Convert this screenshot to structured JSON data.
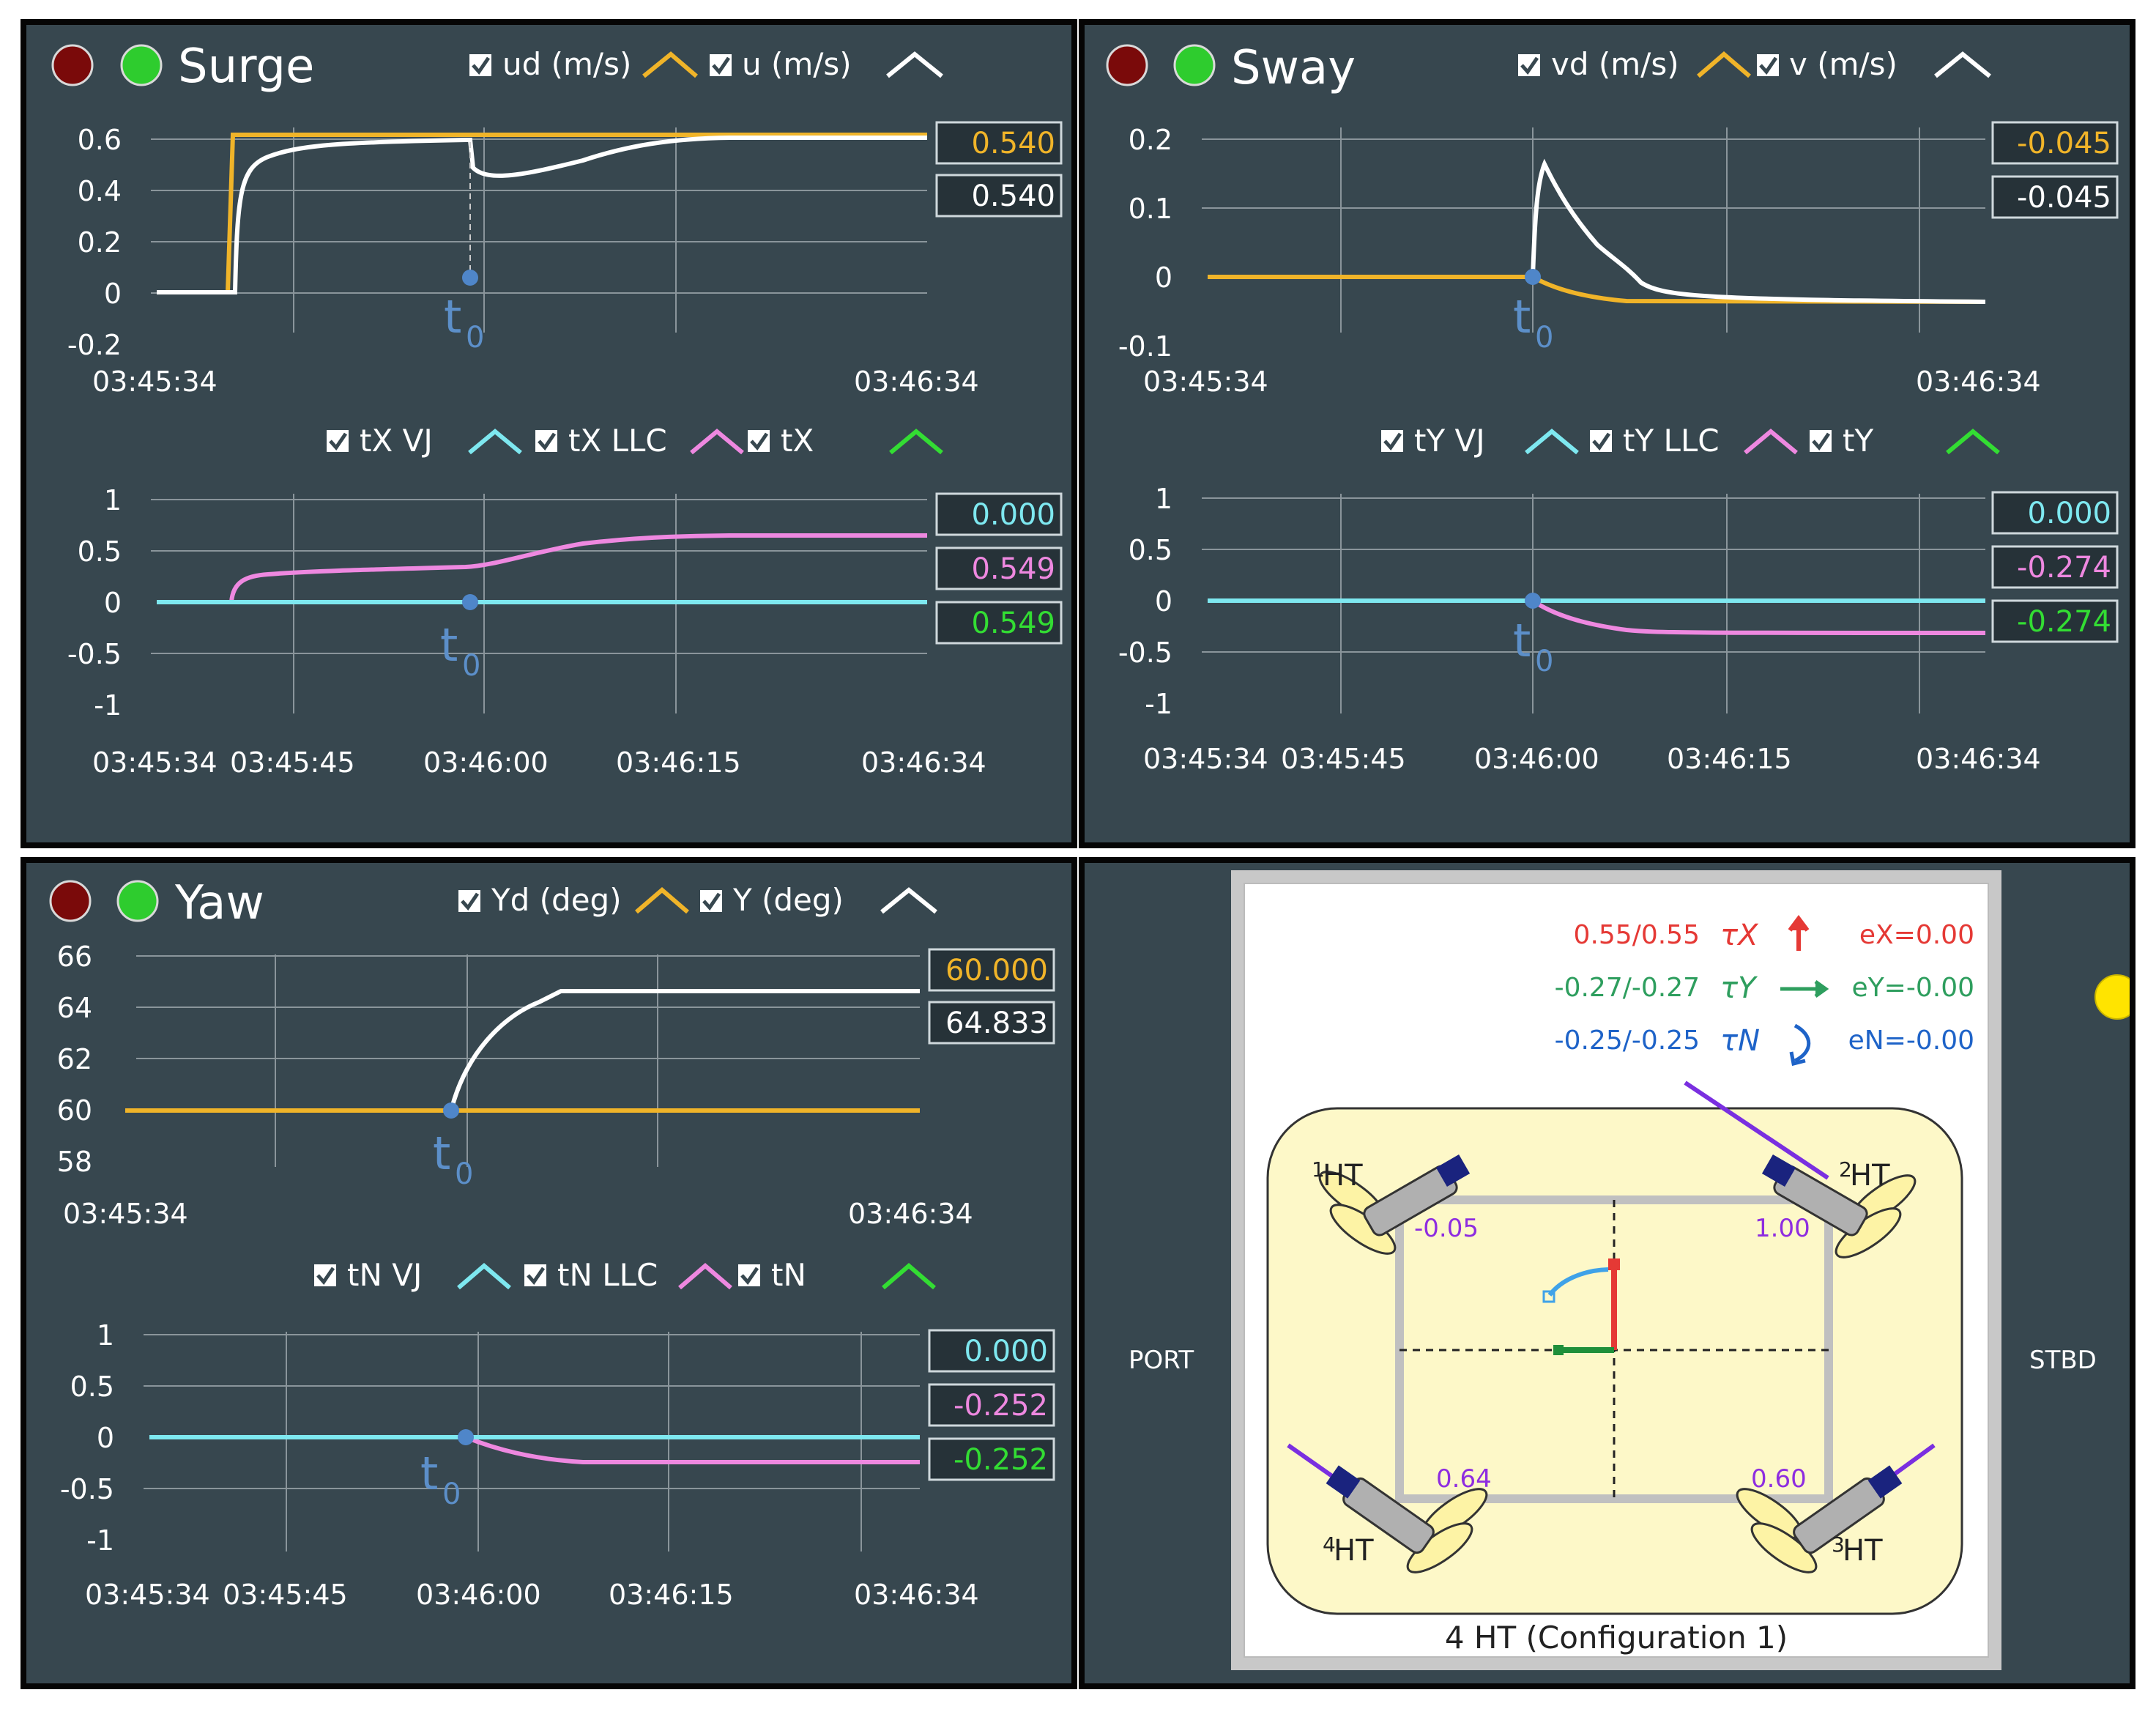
{
  "surge": {
    "title": "Surge",
    "legend_top": [
      {
        "label": "ud (m/s)",
        "color": "#f0b429"
      },
      {
        "label": "u (m/s)",
        "color": "#ffffff"
      }
    ],
    "top": {
      "yticks": [
        "0.6",
        "0.4",
        "0.2",
        "0",
        "-0.2"
      ],
      "xlabels": [
        "03:45:34",
        "03:46:34"
      ],
      "values": [
        "0.540",
        "0.540"
      ]
    },
    "legend_bottom": [
      {
        "label": "tX VJ",
        "color": "#7ee8f0"
      },
      {
        "label": "tX LLC",
        "color": "#ee88e0"
      },
      {
        "label": "tX",
        "color": "#33dd33"
      }
    ],
    "bottom": {
      "yticks": [
        "1",
        "0.5",
        "0",
        "-0.5",
        "-1"
      ],
      "xlabels": [
        "03:45:34",
        "03:45:45",
        "03:46:00",
        "03:46:15",
        "03:46:34"
      ],
      "values": [
        "0.000",
        "0.549",
        "0.549"
      ]
    },
    "marker": "t",
    "marker_sub": "0"
  },
  "sway": {
    "title": "Sway",
    "legend_top": [
      {
        "label": "vd (m/s)",
        "color": "#f0b429"
      },
      {
        "label": "v (m/s)",
        "color": "#ffffff"
      }
    ],
    "top": {
      "yticks": [
        "0.2",
        "0.1",
        "0",
        "-0.1"
      ],
      "xlabels": [
        "03:45:34",
        "03:46:34"
      ],
      "values": [
        "-0.045",
        "-0.045"
      ]
    },
    "legend_bottom": [
      {
        "label": "tY VJ",
        "color": "#7ee8f0"
      },
      {
        "label": "tY LLC",
        "color": "#ee88e0"
      },
      {
        "label": "tY",
        "color": "#33dd33"
      }
    ],
    "bottom": {
      "yticks": [
        "1",
        "0.5",
        "0",
        "-0.5",
        "-1"
      ],
      "xlabels": [
        "03:45:34",
        "03:45:45",
        "03:46:00",
        "03:46:15",
        "03:46:34"
      ],
      "values": [
        "0.000",
        "-0.274",
        "-0.274"
      ]
    },
    "marker": "t",
    "marker_sub": "0"
  },
  "yaw": {
    "title": "Yaw",
    "legend_top": [
      {
        "label": "Yd (deg)",
        "color": "#f0b429"
      },
      {
        "label": "Y (deg)",
        "color": "#ffffff"
      }
    ],
    "top": {
      "yticks": [
        "66",
        "64",
        "62",
        "60",
        "58"
      ],
      "xlabels": [
        "03:45:34",
        "03:46:34"
      ],
      "values": [
        "60.000",
        "64.833"
      ]
    },
    "legend_bottom": [
      {
        "label": "tN VJ",
        "color": "#7ee8f0"
      },
      {
        "label": "tN LLC",
        "color": "#ee88e0"
      },
      {
        "label": "tN",
        "color": "#33dd33"
      }
    ],
    "bottom": {
      "yticks": [
        "1",
        "0.5",
        "0",
        "-0.5",
        "-1"
      ],
      "xlabels": [
        "03:45:34",
        "03:45:45",
        "03:46:00",
        "03:46:15",
        "03:46:34"
      ],
      "values": [
        "0.000",
        "-0.252",
        "-0.252"
      ]
    },
    "marker": "t",
    "marker_sub": "0"
  },
  "config": {
    "port": "PORT",
    "stbd": "STBD",
    "tau_x": {
      "value": "0.55/0.55",
      "symbol": "τX",
      "error": "eX=0.00",
      "color": "#e53935"
    },
    "tau_y": {
      "value": "-0.27/-0.27",
      "symbol": "τY",
      "error": "eY=-0.00",
      "color": "#2e9e5e"
    },
    "tau_n": {
      "value": "-0.25/-0.25",
      "symbol": "τN",
      "error": "eN=-0.00",
      "color": "#1e63c8"
    },
    "thrusters": [
      {
        "sup": "1",
        "label": "HT",
        "value": "-0.05"
      },
      {
        "sup": "2",
        "label": "HT",
        "value": "1.00"
      },
      {
        "sup": "3",
        "label": "HT",
        "value": "0.60"
      },
      {
        "sup": "4",
        "label": "HT",
        "value": "0.64"
      }
    ],
    "caption": "4 HT (Configuration 1)",
    "colors": {
      "panel": "#37474f",
      "diagram_bg": "#fdf8c8",
      "value_text": "#8e2de0",
      "indicator": "#ffe400"
    }
  }
}
